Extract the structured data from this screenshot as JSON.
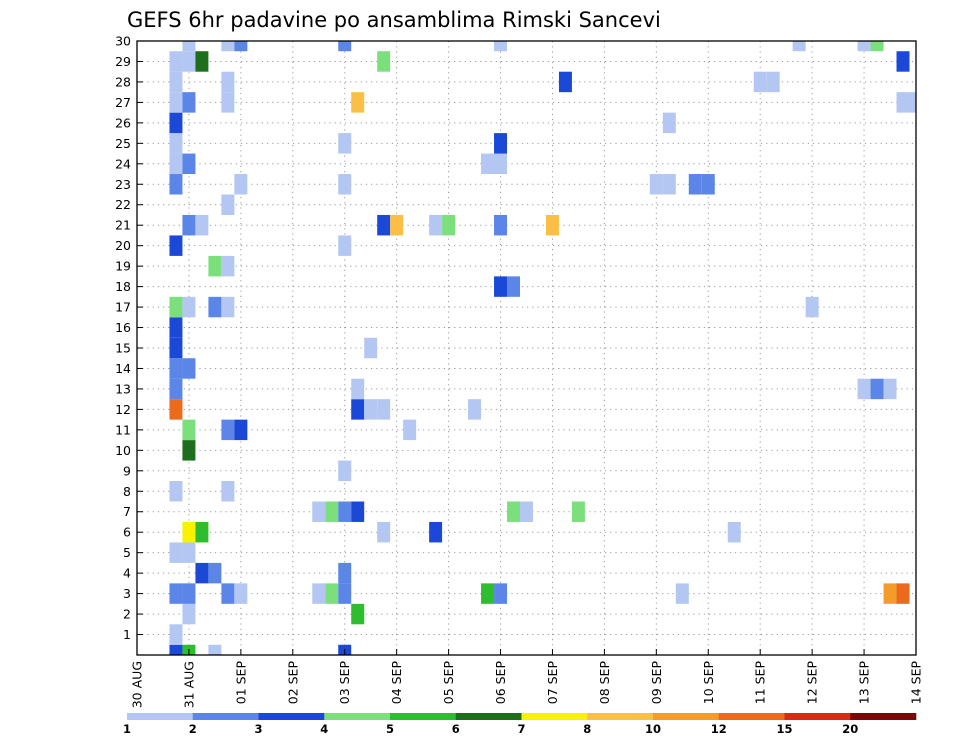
{
  "chart_data": {
    "type": "heatmap",
    "title": "GEFS 6hr padavine po ansamblima Rimski Sancevi",
    "xlabel": "",
    "ylabel": "",
    "x_unit": "6-hour step",
    "x_start_label": "30 AUG",
    "x_ticks": [
      {
        "step": 0,
        "label": "30 AUG"
      },
      {
        "step": 4,
        "label": "31 AUG"
      },
      {
        "step": 8,
        "label": "01 SEP"
      },
      {
        "step": 12,
        "label": "02 SEP"
      },
      {
        "step": 16,
        "label": "03 SEP"
      },
      {
        "step": 20,
        "label": "04 SEP"
      },
      {
        "step": 24,
        "label": "05 SEP"
      },
      {
        "step": 28,
        "label": "06 SEP"
      },
      {
        "step": 32,
        "label": "07 SEP"
      },
      {
        "step": 36,
        "label": "08 SEP"
      },
      {
        "step": 40,
        "label": "09 SEP"
      },
      {
        "step": 44,
        "label": "10 SEP"
      },
      {
        "step": 48,
        "label": "11 SEP"
      },
      {
        "step": 52,
        "label": "12 SEP"
      },
      {
        "step": 56,
        "label": "13 SEP"
      },
      {
        "step": 60,
        "label": "14 SEP"
      }
    ],
    "xlim": [
      0,
      60
    ],
    "y_ticks": [
      1,
      2,
      3,
      4,
      5,
      6,
      7,
      8,
      9,
      10,
      11,
      12,
      13,
      14,
      15,
      16,
      17,
      18,
      19,
      20,
      21,
      22,
      23,
      24,
      25,
      26,
      27,
      28,
      29,
      30
    ],
    "ylim": [
      0,
      30
    ],
    "grid": true,
    "colorbar": {
      "labels": [
        "1",
        "2",
        "3",
        "4",
        "5",
        "6",
        "7",
        "8",
        "10",
        "12",
        "15",
        "20"
      ],
      "colors": [
        "#b3c7f2",
        "#5b86e8",
        "#1c48d8",
        "#7be07b",
        "#2ebd2e",
        "#1d6e1d",
        "#f7f200",
        "#fbbf45",
        "#f39c2a",
        "#ec6a1c",
        "#d42d11",
        "#7a0a0a"
      ]
    },
    "cells_columns": [
      "step",
      "member",
      "value_mm"
    ],
    "cells": [
      [
        3,
        0,
        3.5
      ],
      [
        4,
        0,
        5.5
      ],
      [
        6,
        0,
        1.5
      ],
      [
        16,
        0,
        3.5
      ],
      [
        28,
        30,
        1.5
      ],
      [
        3,
        1,
        1.5
      ],
      [
        4,
        2,
        1.5
      ],
      [
        17,
        2,
        5.5
      ],
      [
        3,
        3,
        2.5
      ],
      [
        4,
        3,
        2.5
      ],
      [
        7,
        3,
        2.5
      ],
      [
        8,
        3,
        1.5
      ],
      [
        14,
        3,
        1.5
      ],
      [
        15,
        3,
        4.5
      ],
      [
        16,
        3,
        2.5
      ],
      [
        27,
        3,
        5.5
      ],
      [
        28,
        3,
        2.5
      ],
      [
        42,
        3,
        1.5
      ],
      [
        58,
        3,
        10.5
      ],
      [
        59,
        3,
        13.5
      ],
      [
        5,
        4,
        3.5
      ],
      [
        6,
        4,
        2.5
      ],
      [
        16,
        4,
        2.5
      ],
      [
        3,
        5,
        1.5
      ],
      [
        4,
        5,
        1.5
      ],
      [
        4,
        6,
        7.5
      ],
      [
        5,
        6,
        5.5
      ],
      [
        19,
        6,
        1.5
      ],
      [
        23,
        6,
        3.5
      ],
      [
        46,
        6,
        1.5
      ],
      [
        14,
        7,
        1.5
      ],
      [
        15,
        7,
        4.5
      ],
      [
        16,
        7,
        2.5
      ],
      [
        17,
        7,
        3.5
      ],
      [
        29,
        7,
        4.5
      ],
      [
        30,
        7,
        1.5
      ],
      [
        34,
        7,
        4.5
      ],
      [
        3,
        8,
        1.5
      ],
      [
        7,
        8,
        1.5
      ],
      [
        16,
        9,
        1.5
      ],
      [
        4,
        10,
        6.5
      ],
      [
        4,
        11,
        4.5
      ],
      [
        7,
        11,
        2.5
      ],
      [
        8,
        11,
        3.5
      ],
      [
        21,
        11,
        1.5
      ],
      [
        3,
        12,
        13.5
      ],
      [
        17,
        12,
        3.5
      ],
      [
        18,
        12,
        1.5
      ],
      [
        19,
        12,
        1.5
      ],
      [
        26,
        12,
        1.5
      ],
      [
        3,
        13,
        2.5
      ],
      [
        17,
        13,
        1.5
      ],
      [
        56,
        13,
        1.5
      ],
      [
        57,
        13,
        2.5
      ],
      [
        58,
        13,
        1.5
      ],
      [
        3,
        14,
        2.5
      ],
      [
        4,
        14,
        2.5
      ],
      [
        3,
        15,
        3.5
      ],
      [
        18,
        15,
        1.5
      ],
      [
        3,
        16,
        3.5
      ],
      [
        3,
        17,
        4.5
      ],
      [
        4,
        17,
        1.5
      ],
      [
        6,
        17,
        2.5
      ],
      [
        7,
        17,
        1.5
      ],
      [
        52,
        17,
        1.5
      ],
      [
        28,
        18,
        3.5
      ],
      [
        29,
        18,
        2.5
      ],
      [
        6,
        19,
        4.5
      ],
      [
        7,
        19,
        1.5
      ],
      [
        3,
        20,
        3.5
      ],
      [
        16,
        20,
        1.5
      ],
      [
        4,
        21,
        2.5
      ],
      [
        5,
        21,
        1.5
      ],
      [
        19,
        21,
        3.5
      ],
      [
        20,
        21,
        9
      ],
      [
        23,
        21,
        1.5
      ],
      [
        24,
        21,
        4.5
      ],
      [
        28,
        21,
        2.5
      ],
      [
        32,
        21,
        9
      ],
      [
        7,
        22,
        1.5
      ],
      [
        3,
        23,
        2.5
      ],
      [
        8,
        23,
        1.5
      ],
      [
        16,
        23,
        1.5
      ],
      [
        40,
        23,
        1.5
      ],
      [
        41,
        23,
        1.5
      ],
      [
        43,
        23,
        2.5
      ],
      [
        44,
        23,
        2.5
      ],
      [
        3,
        24,
        1.5
      ],
      [
        4,
        24,
        2.5
      ],
      [
        27,
        24,
        1.5
      ],
      [
        28,
        24,
        1.5
      ],
      [
        3,
        25,
        1.5
      ],
      [
        16,
        25,
        1.5
      ],
      [
        28,
        25,
        3.5
      ],
      [
        3,
        26,
        3.5
      ],
      [
        41,
        26,
        1.5
      ],
      [
        3,
        27,
        1.5
      ],
      [
        4,
        27,
        2.5
      ],
      [
        7,
        27,
        1.5
      ],
      [
        17,
        27,
        9
      ],
      [
        59,
        27,
        1.5
      ],
      [
        60,
        27,
        1.5
      ],
      [
        3,
        28,
        1.5
      ],
      [
        7,
        28,
        1.5
      ],
      [
        33,
        28,
        3.5
      ],
      [
        48,
        28,
        1.5
      ],
      [
        49,
        28,
        1.5
      ],
      [
        3,
        29,
        1.5
      ],
      [
        4,
        29,
        1.5
      ],
      [
        5,
        29,
        6.5
      ],
      [
        19,
        29,
        4.5
      ],
      [
        59,
        29,
        3.5
      ],
      [
        4,
        30,
        1.5
      ],
      [
        7,
        30,
        1.5
      ],
      [
        8,
        30,
        2.5
      ],
      [
        16,
        30,
        2.5
      ],
      [
        51,
        30,
        1.5
      ],
      [
        56,
        30,
        1.5
      ],
      [
        57,
        30,
        4.5
      ]
    ]
  }
}
